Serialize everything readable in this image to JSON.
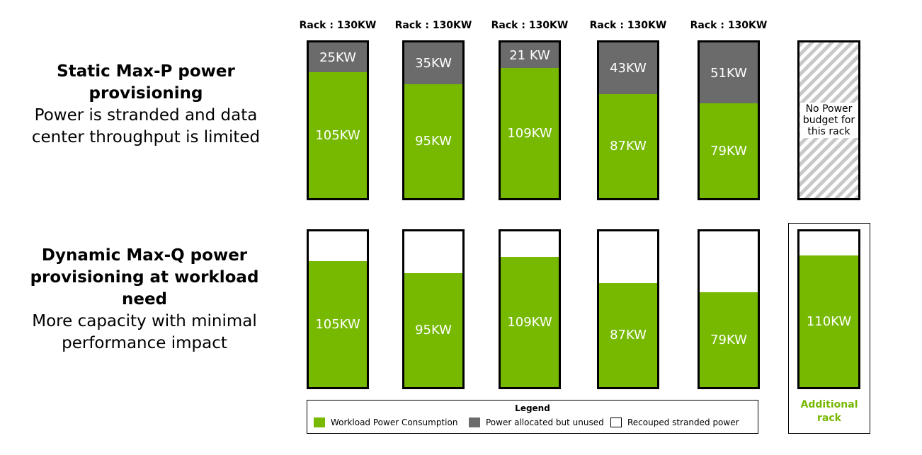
{
  "static_section": {
    "title_line1": "Static Max-P power",
    "title_line2": "provisioning",
    "subtitle_line1": "Power is stranded and data",
    "subtitle_line2": "center throughput is limited"
  },
  "dynamic_section": {
    "title_line1": "Dynamic Max-Q power",
    "title_line2": "provisioning at workload need",
    "subtitle_line1": "More capacity with minimal",
    "subtitle_line2": "performance impact"
  },
  "rack_capacity_label": "Rack : 130KW",
  "racks": [
    {
      "used": 105,
      "unused": 25,
      "used_label": "105KW",
      "unused_label": "25KW"
    },
    {
      "used": 95,
      "unused": 35,
      "used_label": "95KW",
      "unused_label": "35KW"
    },
    {
      "used": 109,
      "unused": 21,
      "used_label": "109KW",
      "unused_label": "21 KW"
    },
    {
      "used": 87,
      "unused": 43,
      "used_label": "87KW",
      "unused_label": "43KW"
    },
    {
      "used": 79,
      "unused": 51,
      "used_label": "79KW",
      "unused_label": "51KW"
    }
  ],
  "no_budget_text": "No Power budget for this rack",
  "additional_rack": {
    "used": 110,
    "used_label": "110KW",
    "label_line1": "Additional",
    "label_line2": "rack"
  },
  "legend": {
    "title": "Legend",
    "items": [
      {
        "label": "Workload Power Consumption",
        "color": "#76b900"
      },
      {
        "label": "Power allocated but unused",
        "color": "#6b6b6b"
      },
      {
        "label": "Recouped stranded power",
        "color": "#ffffff"
      }
    ]
  },
  "colors": {
    "workload": "#76b900",
    "unused": "#6b6b6b",
    "recouped": "#ffffff"
  }
}
